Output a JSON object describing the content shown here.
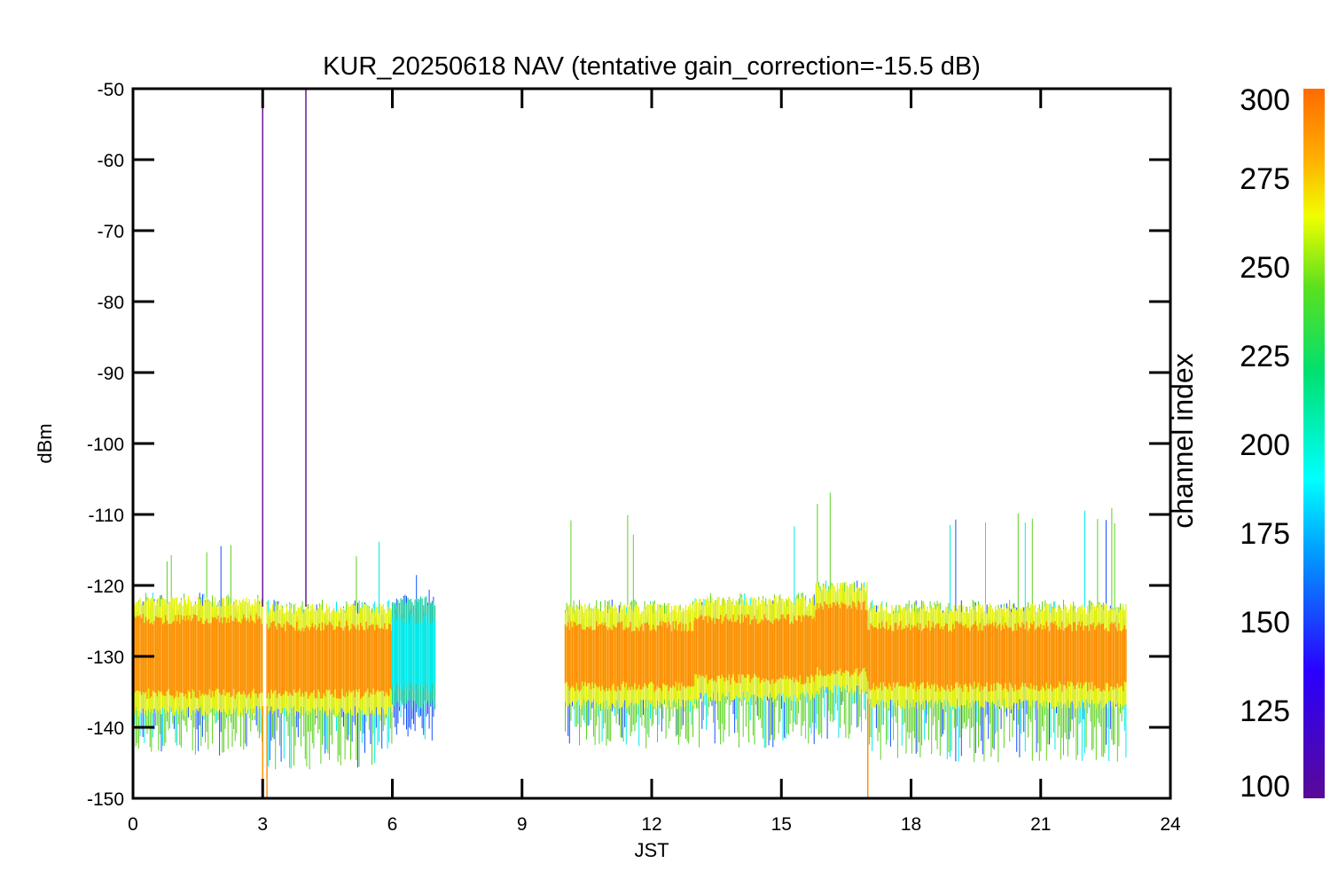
{
  "chart_data": {
    "type": "line",
    "title": "KUR_20250618 NAV (tentative gain_correction=-15.5 dB)",
    "xlabel": "JST",
    "ylabel": "dBm",
    "xlim": [
      0,
      24
    ],
    "ylim": [
      -150,
      -50
    ],
    "x_ticks": [
      "0",
      "3",
      "6",
      "9",
      "12",
      "15",
      "18",
      "21",
      "24"
    ],
    "y_ticks": [
      "-50",
      "-60",
      "-70",
      "-80",
      "-90",
      "-100",
      "-110",
      "-120",
      "-130",
      "-140",
      "-150"
    ],
    "grid": false,
    "colorbar": {
      "label": "channel index",
      "range": [
        100,
        300
      ],
      "ticks": [
        "300",
        "275",
        "250",
        "225",
        "200",
        "175",
        "150",
        "125",
        "100"
      ],
      "colormap": "rainbow (purple → blue → cyan → green → yellow → orange)"
    },
    "segments": [
      {
        "x": [
          0,
          3.0
        ],
        "center_dBm": -131,
        "band_low_dBm": -137,
        "band_high_dBm": -123,
        "noise_low_dBm": -144,
        "noise_high_dBm": -117,
        "dominant": "orange",
        "edge": "green"
      },
      {
        "x": [
          3.1,
          6.0
        ],
        "center_dBm": -131,
        "band_low_dBm": -137,
        "band_high_dBm": -124,
        "noise_low_dBm": -146,
        "noise_high_dBm": -116,
        "dominant": "orange",
        "edge": "green"
      },
      {
        "x": [
          6.0,
          7.0
        ],
        "center_dBm": -130,
        "band_low_dBm": -136,
        "band_high_dBm": -123,
        "noise_low_dBm": -142,
        "noise_high_dBm": -121,
        "dominant": "cyan",
        "edge": "blue"
      },
      {
        "x": [
          10.0,
          13.0
        ],
        "center_dBm": -130,
        "band_low_dBm": -136,
        "band_high_dBm": -124,
        "noise_low_dBm": -143,
        "noise_high_dBm": -113,
        "dominant": "orange",
        "edge": "green"
      },
      {
        "x": [
          13.0,
          15.8
        ],
        "center_dBm": -129,
        "band_low_dBm": -135,
        "band_high_dBm": -123,
        "noise_low_dBm": -143,
        "noise_high_dBm": -113,
        "dominant": "orange",
        "edge": "green"
      },
      {
        "x": [
          15.8,
          17.0
        ],
        "center_dBm": -128,
        "band_low_dBm": -134,
        "band_high_dBm": -121,
        "noise_low_dBm": -142,
        "noise_high_dBm": -109,
        "dominant": "orange",
        "edge": "green"
      },
      {
        "x": [
          17.0,
          23.0
        ],
        "center_dBm": -130,
        "band_low_dBm": -136,
        "band_high_dBm": -124,
        "noise_low_dBm": -145,
        "noise_high_dBm": -112,
        "dominant": "orange",
        "edge": "green"
      }
    ],
    "spikes": [
      {
        "x": 3.0,
        "y_from": -123,
        "y_to": -52,
        "color": "#5a0a96"
      },
      {
        "x": 4.0,
        "y_from": -123,
        "y_to": -50,
        "color": "#5a0a96"
      },
      {
        "x": 3.0,
        "y_from": -137,
        "y_to": -150,
        "color": "#ff8c00"
      },
      {
        "x": 3.1,
        "y_from": -137,
        "y_to": -150,
        "color": "#ff8c00"
      },
      {
        "x": 17.0,
        "y_from": -136,
        "y_to": -150,
        "color": "#ff8c00"
      }
    ]
  }
}
